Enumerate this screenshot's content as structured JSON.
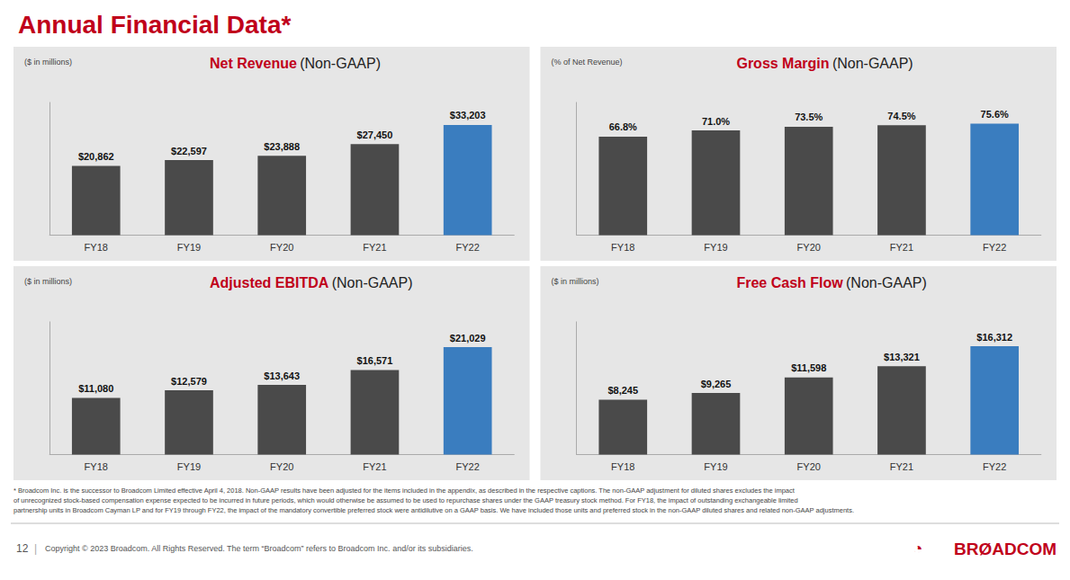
{
  "title": "Annual Financial Data*",
  "annotations": [
    [
      "* Broadcom Inc. is the successor to Broadcom Limited effective April 4, 2018. Non-GAAP results have been adjusted for the items included in the appendix, as described in the respective captions. The non-GAAP adjustment for diluted shares excludes the impact",
      "of unrecognized stock-based compensation expense expected to be incurred in future periods, which would otherwise be assumed to be used to repurchase shares under the GAAP treasury stock method. For FY18, the impact of outstanding exchangeable limited",
      "partnership units in Broadcom Cayman LP and for FY19 through FY22, the impact of the mandatory convertible preferred stock were antidilutive on a GAAP basis. We have included those units and preferred stock in the non-GAAP diluted shares and related non-GAAP adjustments."
    ],
    [
      "12",
      "|",
      "Copyright © 2023 Broadcom. All Rights Reserved. The term “Broadcom” refers to Broadcom Inc. and/or its subsidiaries."
    ],
    [
      "◔",
      "BRØADCOM"
    ]
  ],
  "chart_data": [
    {
      "type": "bar",
      "title": "Net Revenue",
      "subtitle": "(Non-GAAP)",
      "annotations": [
        "($ in millions)"
      ],
      "categories": [
        "FY18",
        "FY19",
        "FY20",
        "FY21",
        "FY22"
      ],
      "values": [
        20862,
        22597,
        23888,
        27450,
        33203
      ],
      "value_labels": [
        "$20,862",
        "$22,597",
        "$23,888",
        "$27,450",
        "$33,203"
      ],
      "colors": [
        "#4a4a4a",
        "#4a4a4a",
        "#4a4a4a",
        "#4a4a4a",
        "#3a7dbf"
      ],
      "ylim": [
        0,
        40000
      ],
      "yticks": [],
      "grid": false,
      "data_labels": true,
      "tick_labels": "x"
    },
    {
      "type": "bar",
      "title": "Gross Margin",
      "subtitle": "(Non-GAAP)",
      "annotations": [
        "(% of Net Revenue)"
      ],
      "categories": [
        "FY18",
        "FY19",
        "FY20",
        "FY21",
        "FY22"
      ],
      "values": [
        66.8,
        71.0,
        73.5,
        74.5,
        75.6
      ],
      "value_labels": [
        "66.8%",
        "71.0%",
        "73.5%",
        "74.5%",
        "75.6%"
      ],
      "colors": [
        "#4a4a4a",
        "#4a4a4a",
        "#4a4a4a",
        "#4a4a4a",
        "#3a7dbf"
      ],
      "ylim": [
        0,
        90
      ],
      "yticks": [],
      "grid": false,
      "data_labels": true,
      "tick_labels": "x"
    },
    {
      "type": "bar",
      "title": "Adjusted EBITDA",
      "subtitle": "(Non-GAAP)",
      "annotations": [
        "($ in millions)"
      ],
      "categories": [
        "FY18",
        "FY19",
        "FY20",
        "FY21",
        "FY22"
      ],
      "values": [
        11080,
        12579,
        13643,
        16571,
        21029
      ],
      "value_labels": [
        "$11,080",
        "$12,579",
        "$13,643",
        "$16,571",
        "$21,029"
      ],
      "colors": [
        "#4a4a4a",
        "#4a4a4a",
        "#4a4a4a",
        "#4a4a4a",
        "#3a7dbf"
      ],
      "ylim": [
        0,
        26000
      ],
      "yticks": [],
      "grid": false,
      "data_labels": true,
      "tick_labels": "x"
    },
    {
      "type": "bar",
      "title": "Free Cash Flow",
      "subtitle": "(Non-GAAP)",
      "annotations": [
        "($ in millions)"
      ],
      "categories": [
        "FY18",
        "FY19",
        "FY20",
        "FY21",
        "FY22"
      ],
      "values": [
        8245,
        9265,
        11598,
        13321,
        16312
      ],
      "value_labels": [
        "$8,245",
        "$9,265",
        "$11,598",
        "$13,321",
        "$16,312"
      ],
      "colors": [
        "#4a4a4a",
        "#4a4a4a",
        "#4a4a4a",
        "#4a4a4a",
        "#3a7dbf"
      ],
      "ylim": [
        0,
        20000
      ],
      "yticks": [],
      "grid": false,
      "data_labels": true,
      "tick_labels": "x"
    }
  ]
}
